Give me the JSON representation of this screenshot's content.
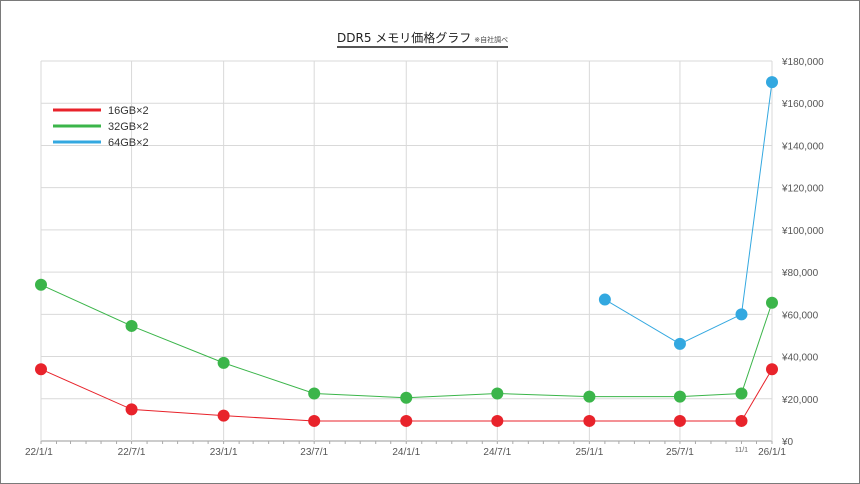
{
  "chart_data": {
    "type": "line",
    "title": "DDR5 メモリ価格グラフ",
    "title_note": "※自社調べ",
    "x": [
      "22/1/1",
      "22/7/1",
      "23/1/1",
      "23/7/1",
      "24/1/1",
      "24/7/1",
      "25/1/1",
      "25/7/1",
      "25/11/1",
      "26/1/1"
    ],
    "x_tick_labels": [
      "22/1/1",
      "22/7/1",
      "23/1/1",
      "23/7/1",
      "24/1/1",
      "24/7/1",
      "25/1/1",
      "25/7/1",
      "11/1",
      "26/1/1"
    ],
    "series": [
      {
        "name": "16GB×2",
        "color": "#e8232b",
        "points": [
          {
            "x": "22/1/1",
            "y": 34000
          },
          {
            "x": "22/7/1",
            "y": 15000
          },
          {
            "x": "23/1/1",
            "y": 12000
          },
          {
            "x": "23/7/1",
            "y": 9500
          },
          {
            "x": "24/1/1",
            "y": 9500
          },
          {
            "x": "24/7/1",
            "y": 9500
          },
          {
            "x": "25/1/1",
            "y": 9500
          },
          {
            "x": "25/7/1",
            "y": 9500
          },
          {
            "x": "25/11/1",
            "y": 9500
          },
          {
            "x": "26/1/1",
            "y": 34000
          }
        ]
      },
      {
        "name": "32GB×2",
        "color": "#3bb54a",
        "points": [
          {
            "x": "22/1/1",
            "y": 74000
          },
          {
            "x": "22/7/1",
            "y": 54500
          },
          {
            "x": "23/1/1",
            "y": 37000
          },
          {
            "x": "23/7/1",
            "y": 22500
          },
          {
            "x": "24/1/1",
            "y": 20500
          },
          {
            "x": "24/7/1",
            "y": 22500
          },
          {
            "x": "25/1/1",
            "y": 21000
          },
          {
            "x": "25/7/1",
            "y": 21000
          },
          {
            "x": "25/11/1",
            "y": 22500
          },
          {
            "x": "26/1/1",
            "y": 65500
          }
        ]
      },
      {
        "name": "64GB×2",
        "color": "#33a8e0",
        "points": [
          {
            "x": "25/2/1",
            "y": 67000
          },
          {
            "x": "25/7/1",
            "y": 46000
          },
          {
            "x": "25/11/1",
            "y": 60000
          },
          {
            "x": "26/1/1",
            "y": 170000
          }
        ]
      }
    ],
    "y_tick_labels": [
      "¥0",
      "¥20,000",
      "¥40,000",
      "¥60,000",
      "¥80,000",
      "¥100,000",
      "¥120,000",
      "¥140,000",
      "¥160,000",
      "¥180,000"
    ],
    "ylim": [
      0,
      180000
    ],
    "xlim": [
      "22/1/1",
      "26/1/1"
    ],
    "grid": true,
    "legend_position": "top-left",
    "y_axis_side": "right"
  }
}
